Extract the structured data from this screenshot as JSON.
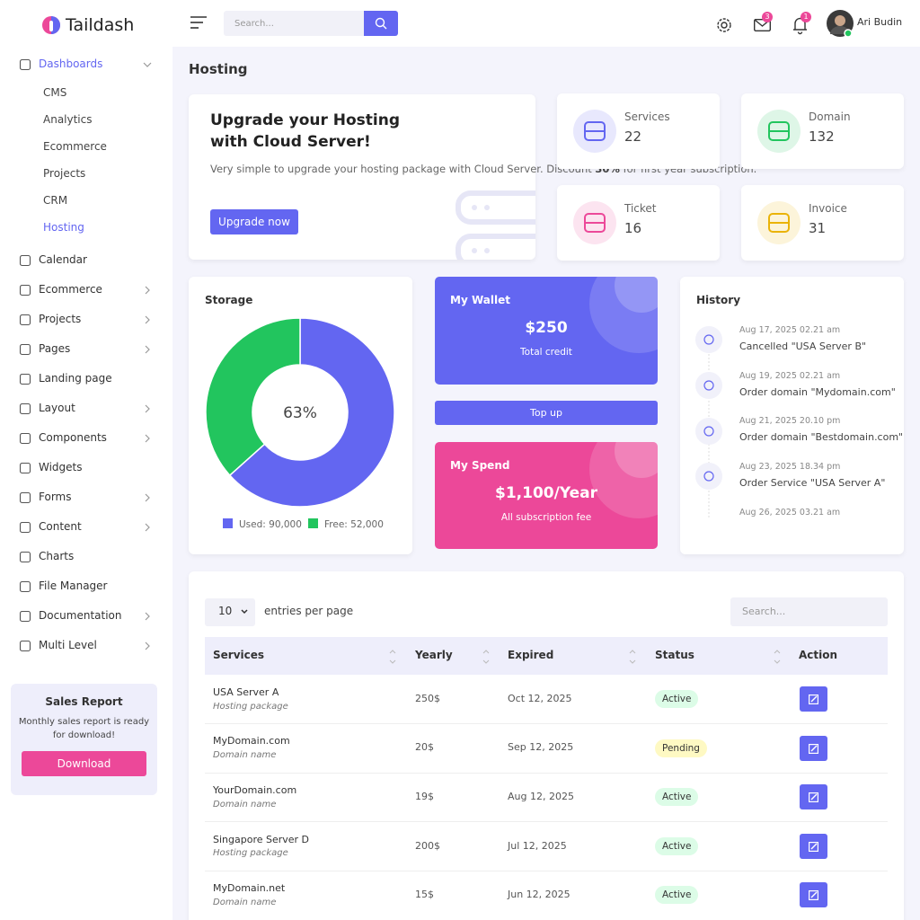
{
  "brand": "Taildash",
  "topbar": {
    "search_placeholder": "Search...",
    "user_name": "Ari Budin",
    "messages_badge": 3,
    "notifications_badge": 1
  },
  "sidebar": {
    "items": [
      {
        "label": "Dashboards",
        "children": [
          "CMS",
          "Analytics",
          "Ecommerce",
          "Projects",
          "CRM",
          "Hosting"
        ]
      },
      {
        "label": "Calendar"
      },
      {
        "label": "Ecommerce",
        "has_submenu": true
      },
      {
        "label": "Projects",
        "has_submenu": true
      },
      {
        "label": "Pages",
        "has_submenu": true
      },
      {
        "label": "Landing page"
      },
      {
        "label": "Layout",
        "has_submenu": true
      },
      {
        "label": "Components",
        "has_submenu": true
      },
      {
        "label": "Widgets"
      },
      {
        "label": "Forms",
        "has_submenu": true
      },
      {
        "label": "Content",
        "has_submenu": true
      },
      {
        "label": "Charts"
      },
      {
        "label": "File Manager"
      },
      {
        "label": "Documentation",
        "has_submenu": true
      },
      {
        "label": "Multi Level",
        "has_submenu": true
      }
    ],
    "sales_report": {
      "title": "Sales Report",
      "text": "Monthly sales report is ready for download!",
      "button": "Download"
    }
  },
  "page_title": "Hosting",
  "upgrade": {
    "title_lines": [
      "Upgrade your Hosting",
      "with Cloud Server!"
    ],
    "text_before": "Very simple to upgrade your hosting package with Cloud Server. Discount ",
    "discount": "30%",
    "text_after": " for first year subscription.",
    "button": "Upgrade now"
  },
  "stats": [
    {
      "label": "Services",
      "value": 22,
      "color": "#6366f1"
    },
    {
      "label": "Domain",
      "value": 132,
      "color": "#22c55e"
    },
    {
      "label": "Ticket",
      "value": 16,
      "color": "#ec4899"
    },
    {
      "label": "Invoice",
      "value": 31,
      "color": "#eab308"
    }
  ],
  "storage": {
    "title": "Storage",
    "type": "donut",
    "center_label": "63%",
    "slices": [
      {
        "label": "Used: 90,000",
        "value": 90000,
        "color": "#6366f1"
      },
      {
        "label": "Free: 52,000",
        "value": 52000,
        "color": "#22c55e"
      }
    ]
  },
  "wallet": {
    "title": "My Wallet",
    "amount": "$250",
    "caption": "Total credit",
    "button": "Top up"
  },
  "spend": {
    "title": "My Spend",
    "amount": "$1,100/Year",
    "caption": "All subscription fee"
  },
  "history": {
    "title": "History",
    "items": [
      {
        "time": "Aug 17, 2025 02.21 am",
        "text": "Cancelled \"USA Server B\""
      },
      {
        "time": "Aug 19, 2025 02.21 am",
        "text": "Order domain \"Mydomain.com\""
      },
      {
        "time": "Aug 21, 2025 20.10 pm",
        "text": "Order domain \"Bestdomain.com\""
      },
      {
        "time": "Aug 23, 2025 18.34 pm",
        "text": "Order Service \"USA Server A\""
      },
      {
        "time": "Aug 26, 2025 03.21 am"
      }
    ]
  },
  "table": {
    "entries_value": "10",
    "entries_label": "entries per page",
    "search_placeholder": "Search...",
    "columns": [
      "Services",
      "Yearly",
      "Expired",
      "Status",
      "Action"
    ],
    "rows": [
      {
        "name": "USA Server A",
        "type": "Hosting package",
        "yearly": "250$",
        "expired": "Oct 12, 2025",
        "status": "Active",
        "status_color": "#dcfce7"
      },
      {
        "name": "MyDomain.com",
        "type": "Domain name",
        "yearly": "20$",
        "expired": "Sep 12, 2025",
        "status": "Pending",
        "status_color": "#fef9c3"
      },
      {
        "name": "YourDomain.com",
        "type": "Domain name",
        "yearly": "19$",
        "expired": "Aug 12, 2025",
        "status": "Active",
        "status_color": "#dcfce7"
      },
      {
        "name": "Singapore Server D",
        "type": "Hosting package",
        "yearly": "200$",
        "expired": "Jul 12, 2025",
        "status": "Active",
        "status_color": "#dcfce7"
      },
      {
        "name": "MyDomain.net",
        "type": "Domain name",
        "yearly": "15$",
        "expired": "Jun 12, 2025",
        "status": "Active",
        "status_color": "#dcfce7"
      }
    ]
  }
}
